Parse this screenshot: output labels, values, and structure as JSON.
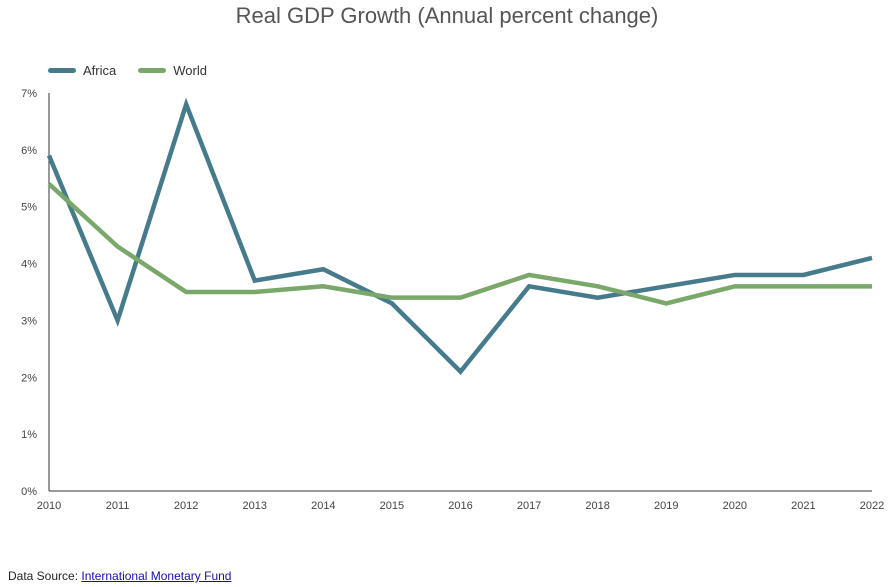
{
  "chart_data": {
    "type": "line",
    "title": "Real GDP Growth (Annual percent change)",
    "xlabel": "",
    "ylabel": "",
    "x": [
      "2010",
      "2011",
      "2012",
      "2013",
      "2014",
      "2015",
      "2016",
      "2017",
      "2018",
      "2019",
      "2020",
      "2021",
      "2022"
    ],
    "y_ticks": [
      "0%",
      "1%",
      "2%",
      "3%",
      "4%",
      "5%",
      "6%",
      "7%"
    ],
    "ylim": [
      0,
      7
    ],
    "grid": false,
    "legend_position": "top-left",
    "series": [
      {
        "name": "Africa",
        "color": "#457b8b",
        "values": [
          5.9,
          3.0,
          6.8,
          3.7,
          3.9,
          3.3,
          2.1,
          3.6,
          3.4,
          3.6,
          3.8,
          3.8,
          4.1
        ]
      },
      {
        "name": "World",
        "color": "#7aa86a",
        "values": [
          5.4,
          4.3,
          3.5,
          3.5,
          3.6,
          3.4,
          3.4,
          3.8,
          3.6,
          3.3,
          3.6,
          3.6,
          3.6
        ]
      }
    ]
  },
  "footer": {
    "prefix": "Data Source: ",
    "link_text": "International Monetary Fund"
  }
}
